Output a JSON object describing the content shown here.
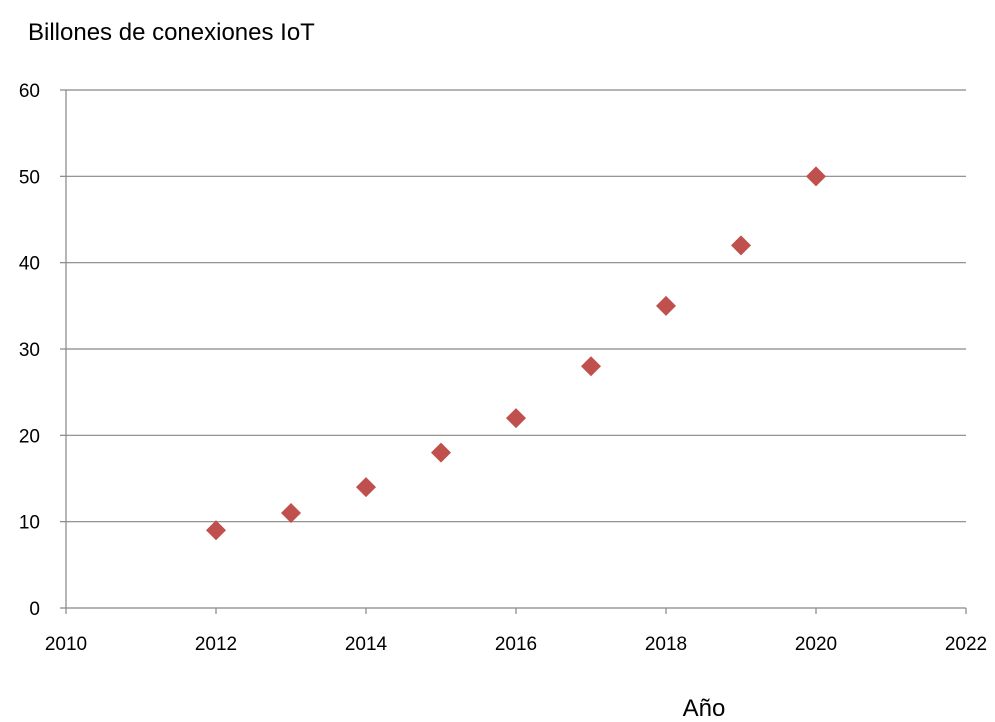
{
  "chart_data": {
    "type": "scatter",
    "title": "",
    "ylabel": "Billones de conexiones IoT",
    "xlabel": "Año",
    "xlim": [
      2010,
      2022
    ],
    "ylim": [
      0,
      60
    ],
    "x_ticks": [
      2010,
      2012,
      2014,
      2016,
      2018,
      2020,
      2022
    ],
    "y_ticks": [
      0,
      10,
      20,
      30,
      40,
      50,
      60
    ],
    "grid": true,
    "legend": "none",
    "marker": "diamond",
    "marker_color": "#c0504d",
    "series": [
      {
        "x": [
          2012,
          2013,
          2014,
          2015,
          2016,
          2017,
          2018,
          2019,
          2020
        ],
        "y": [
          9,
          11,
          14,
          18,
          22,
          28,
          35,
          42,
          50
        ]
      }
    ]
  }
}
